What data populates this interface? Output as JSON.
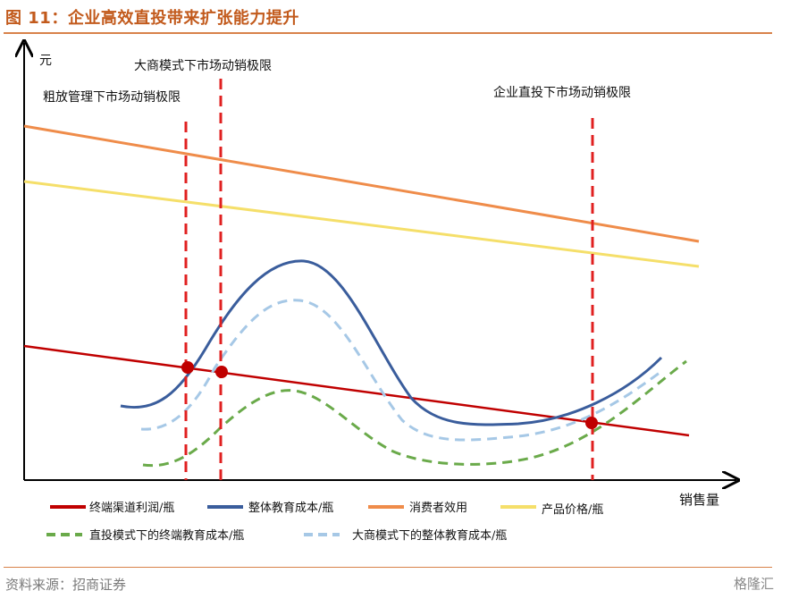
{
  "figure": {
    "title": "图 11：企业高效直投带来扩张能力提升",
    "source": "资料来源：招商证券",
    "watermark": "格隆汇"
  },
  "axes": {
    "y_label": "元",
    "x_label": "销售量"
  },
  "annotations": {
    "coarse": "粗放管理下市场动销极限",
    "dealer": "大商模式下市场动销极限",
    "direct": "企业直投下市场动销极限"
  },
  "legend": [
    {
      "label": "终端渠道利润/瓶",
      "color": "#c00000"
    },
    {
      "label": "整体教育成本/瓶",
      "color": "#3a5d9c"
    },
    {
      "label": "消费者效用",
      "color": "#ef8c4a"
    },
    {
      "label": "产品价格/瓶",
      "color": "#f5df6a"
    },
    {
      "label": "直投模式下的终端教育成本/瓶",
      "color": "#6aaa4a"
    },
    {
      "label": "大商模式下的整体教育成本/瓶",
      "color": "#a6c8e6"
    }
  ],
  "colors": {
    "limit_line": "#e02020",
    "point": "#c00000",
    "axis": "#000000"
  }
}
